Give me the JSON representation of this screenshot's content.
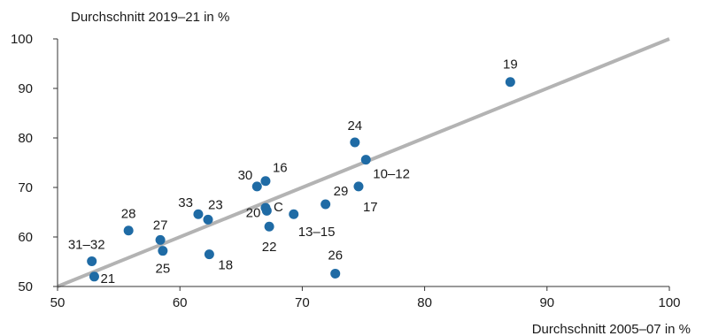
{
  "chart_data": {
    "type": "scatter",
    "ylabel": "Durchschnitt 2019–21 in %",
    "xlabel": "Durchschnitt 2005–07 in %",
    "xlim": [
      50,
      100
    ],
    "ylim": [
      50,
      100
    ],
    "xticks": [
      "50",
      "60",
      "70",
      "80",
      "90",
      "100"
    ],
    "yticks": [
      "50",
      "60",
      "70",
      "80",
      "90",
      "100"
    ],
    "grid": false,
    "marker_color": "#1f6ba5",
    "line_color": "#b3b3b3",
    "reference_line": {
      "from": [
        50,
        50
      ],
      "to": [
        100,
        100
      ]
    },
    "points": [
      {
        "label": "19",
        "x": 87.0,
        "y": 91.3
      },
      {
        "label": "24",
        "x": 74.3,
        "y": 79.1
      },
      {
        "label": "10–12",
        "x": 75.2,
        "y": 75.6
      },
      {
        "label": "17",
        "x": 74.6,
        "y": 70.2
      },
      {
        "label": "29",
        "x": 71.9,
        "y": 66.6
      },
      {
        "label": "16",
        "x": 67.0,
        "y": 71.3
      },
      {
        "label": "30",
        "x": 66.3,
        "y": 70.2
      },
      {
        "label": "C",
        "x": 67.0,
        "y": 65.9
      },
      {
        "label": "20",
        "x": 67.1,
        "y": 65.3
      },
      {
        "label": "13–15",
        "x": 69.3,
        "y": 64.6
      },
      {
        "label": "22",
        "x": 67.3,
        "y": 62.1
      },
      {
        "label": "33",
        "x": 61.5,
        "y": 64.6
      },
      {
        "label": "23",
        "x": 62.3,
        "y": 63.5
      },
      {
        "label": "18",
        "x": 62.4,
        "y": 56.5
      },
      {
        "label": "26",
        "x": 72.7,
        "y": 52.6
      },
      {
        "label": "28",
        "x": 55.8,
        "y": 61.3
      },
      {
        "label": "27",
        "x": 58.4,
        "y": 59.4
      },
      {
        "label": "25",
        "x": 58.6,
        "y": 57.2
      },
      {
        "label": "31–32",
        "x": 52.8,
        "y": 55.1
      },
      {
        "label": "21",
        "x": 53.0,
        "y": 52.0
      }
    ]
  }
}
